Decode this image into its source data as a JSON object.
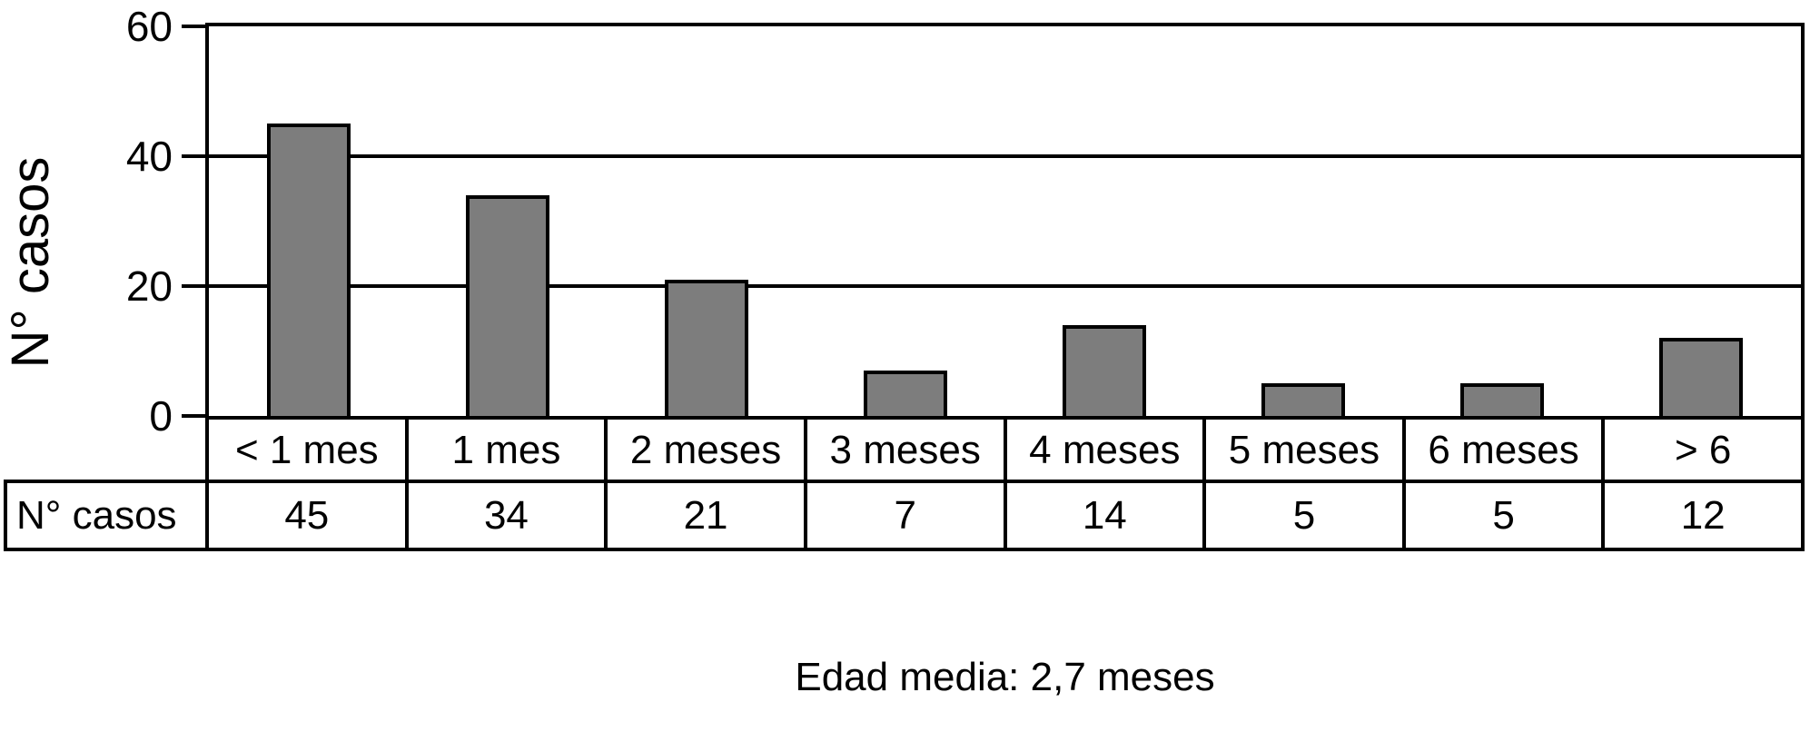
{
  "chart_data": {
    "type": "bar",
    "title": "",
    "categories": [
      "< 1 mes",
      "1 mes",
      "2 meses",
      "3 meses",
      "4 meses",
      "5 meses",
      "6 meses",
      "> 6"
    ],
    "values": [
      45,
      34,
      21,
      7,
      14,
      5,
      5,
      12
    ],
    "series": [
      {
        "name": "N° casos",
        "values": [
          45,
          34,
          21,
          7,
          14,
          5,
          5,
          12
        ]
      }
    ],
    "xlabel": "",
    "ylabel": "N° casos",
    "ylim": [
      0,
      60
    ],
    "yticks": [
      0,
      20,
      40,
      60
    ],
    "grid": true,
    "legend": false,
    "bar_color": "#7d7d7d",
    "bar_border_color": "#000000",
    "line_color": "#000000",
    "table_row_label": "N° casos",
    "caption": "Edad media: 2,7 meses"
  }
}
